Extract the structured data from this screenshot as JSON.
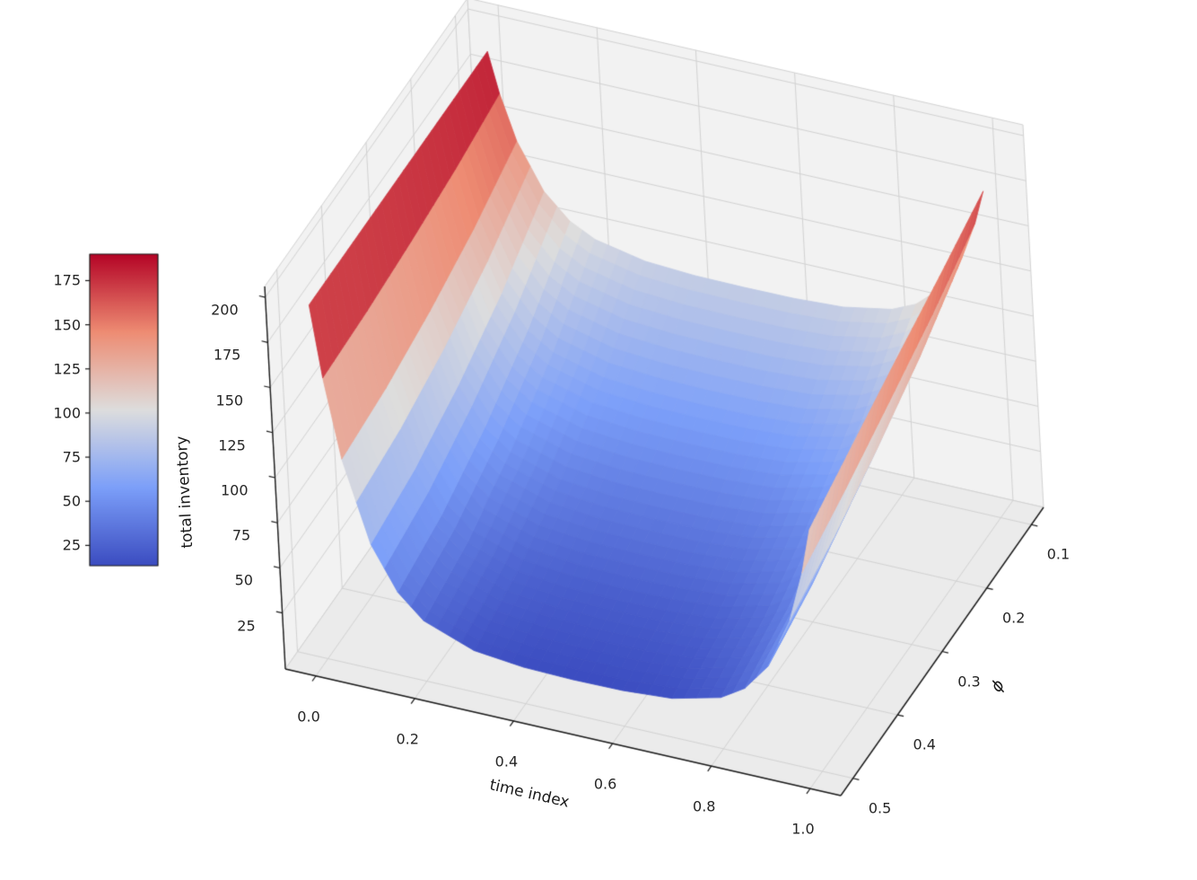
{
  "chart_data": {
    "type": "surface",
    "title": "",
    "xlabel": "time index",
    "ylabel": "ϕ",
    "zlabel": "total inventory",
    "colormap": "coolwarm",
    "xlim": [
      0.0,
      1.0
    ],
    "ylim": [
      0.1,
      0.5
    ],
    "zlim": [
      0,
      206
    ],
    "x": [
      0,
      0.02,
      0.05,
      0.1,
      0.15,
      0.2,
      0.3,
      0.4,
      0.5,
      0.6,
      0.7,
      0.8,
      0.85,
      0.9,
      0.95,
      0.98,
      1.0
    ],
    "y": [
      0.1,
      0.2,
      0.3,
      0.4,
      0.5
    ],
    "z": [
      [
        190,
        167.9,
        143.5,
        118.7,
        105.3,
        98.2,
        92.4,
        90.7,
        90.4,
        90.6,
        92.0,
        97.0,
        103.0,
        114.4,
        135.5,
        156.2,
        175
      ],
      [
        190,
        161.2,
        129.6,
        97.2,
        79.9,
        70.7,
        63.1,
        60.9,
        60.4,
        60.7,
        62.4,
        68.5,
        75.8,
        89.5,
        115.1,
        140.2,
        163
      ],
      [
        190,
        156.4,
        119.4,
        81.5,
        61.3,
        50.5,
        41.6,
        39.0,
        38.5,
        38.8,
        40.7,
        47.4,
        55.5,
        70.7,
        99.0,
        126.8,
        152
      ],
      [
        190,
        152.8,
        111.9,
        70.1,
        47.8,
        35.8,
        25.9,
        23.1,
        22.5,
        22.8,
        24.8,
        31.7,
        40.1,
        55.8,
        85.2,
        113.9,
        140
      ],
      [
        190,
        150.8,
        107.7,
        63.7,
        40.2,
        27.5,
        17.2,
        14.2,
        13.5,
        13.8,
        15.7,
        22.4,
        30.6,
        45.9,
        74.6,
        102.6,
        128
      ]
    ],
    "xticks": [
      0.0,
      0.2,
      0.4,
      0.6,
      0.8,
      1.0
    ],
    "yticks": [
      0.1,
      0.2,
      0.3,
      0.4,
      0.5
    ],
    "zticks": [
      25,
      50,
      75,
      100,
      125,
      150,
      175,
      200
    ],
    "colorbar_ticks": [
      25,
      50,
      75,
      100,
      125,
      150,
      175
    ],
    "legend": "none",
    "grid": true,
    "colors": {
      "low": "#3b4cc0",
      "mid": "#dddddd",
      "high": "#b40426",
      "pane": "#f2f2f2",
      "pane_floor": "#ebebeb",
      "grid": "#d2d2d2",
      "axis": "#1a1a1a",
      "background": "#ffffff"
    }
  }
}
